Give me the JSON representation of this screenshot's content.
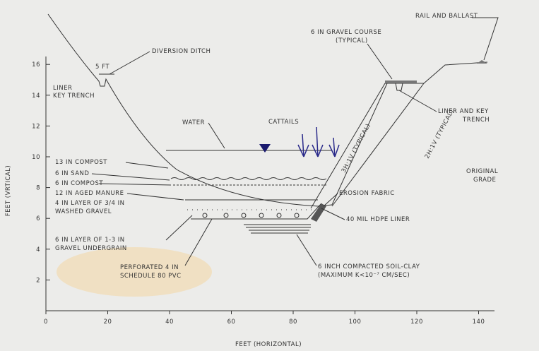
{
  "axes": {
    "x_label": "FEET (HORIZONTAL)",
    "y_label": "FEET (VRTICAL)",
    "xlim": [
      0,
      160
    ],
    "ylim": [
      0,
      20
    ],
    "xticks": [
      0,
      20,
      40,
      60,
      80,
      100,
      120,
      140
    ],
    "yticks": [
      2,
      4,
      6,
      8,
      10,
      12,
      14,
      16
    ]
  },
  "labels": {
    "rail": "RAIL AND BALLAST",
    "gravel_course_1": "6 IN GRAVEL COURSE",
    "gravel_course_2": "(TYPICAL)",
    "five_ft": "5 FT",
    "diversion": "DIVERSION DITCH",
    "liner_key_1": "LINER",
    "liner_key_2": "KEY TRENCH",
    "water": "WATER",
    "cattails": "CATTAILS",
    "slope_3h": "3H:1V (TYPICAL)",
    "slope_2h": "2H:1V (TYPICAL)",
    "liner_key_right_1": "LINER AND KEY",
    "liner_key_right_2": "TRENCH",
    "original_grade_1": "ORIGINAL",
    "original_grade_2": "GRADE",
    "compost_13": "13 IN COMPOST",
    "sand": "6 IN SAND",
    "compost_6": "6 IN COMPOST",
    "manure": "12 IN AGED MANURE",
    "washed_gravel_1": "4 IN LAYER OF 3/4 IN",
    "washed_gravel_2": "WASHED GRAVEL",
    "erosion": "EROSION FABRIC",
    "hdpe": "40 MIL HDPE LINER",
    "underdrain_1": "6 IN LAYER OF 1-3 IN",
    "underdrain_2": "GRAVEL UNDERGRAIN",
    "pvc_1": "PERFORATED 4 IN",
    "pvc_2": "SCHEDULE 80 PVC",
    "soil_1": "6 INCH COMPACTED SOIL-CLAY",
    "soil_2": "(MAXIMUM K<10⁻⁷ CM/SEC)"
  }
}
